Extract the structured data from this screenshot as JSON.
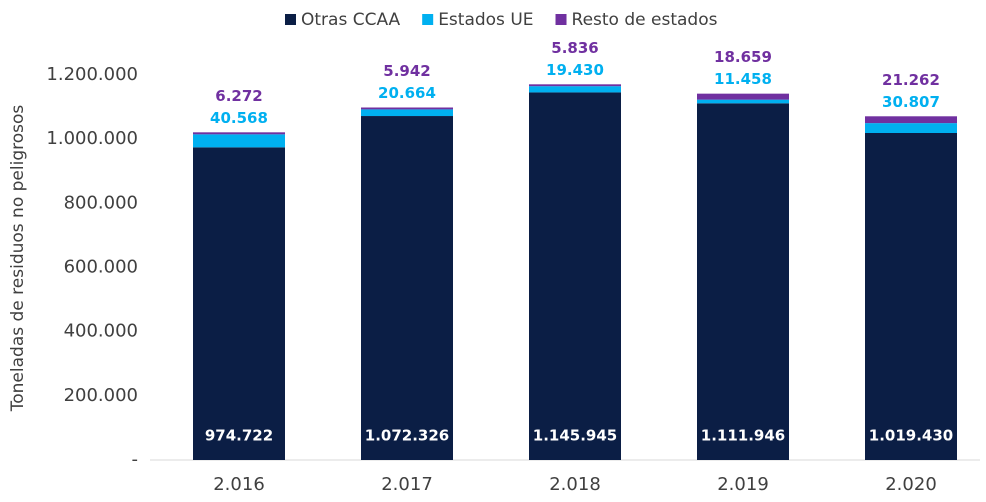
{
  "chart_data": {
    "type": "stacked_bar",
    "y_label": "Toneladas de residuos no peligrosos",
    "categories": [
      "2.016",
      "2.017",
      "2.018",
      "2.019",
      "2.020"
    ],
    "series": [
      {
        "name": "Otras CCAA",
        "color": "#0b1e45",
        "values": [
          974722,
          1072326,
          1145945,
          1111946,
          1019430
        ],
        "value_labels": [
          "974.722",
          "1.072.326",
          "1.145.945",
          "1.111.946",
          "1.019.430"
        ]
      },
      {
        "name": "Estados UE",
        "color": "#00b0f0",
        "values": [
          40568,
          20664,
          19430,
          11458,
          30807
        ],
        "value_labels": [
          "40.568",
          "20.664",
          "19.430",
          "11.458",
          "30.807"
        ]
      },
      {
        "name": "Resto de estados",
        "color": "#7030a0",
        "values": [
          6272,
          5942,
          5836,
          18659,
          21262
        ],
        "value_labels": [
          "6.272",
          "5.942",
          "5.836",
          "18.659",
          "21.262"
        ]
      }
    ],
    "ylim": [
      0,
      1300000
    ],
    "yticks": [
      {
        "value": 0,
        "label": "-"
      },
      {
        "value": 200000,
        "label": "200.000"
      },
      {
        "value": 400000,
        "label": "400.000"
      },
      {
        "value": 600000,
        "label": "600.000"
      },
      {
        "value": 800000,
        "label": "800.000"
      },
      {
        "value": 1000000,
        "label": "1.000.000"
      },
      {
        "value": 1200000,
        "label": "1.200.000"
      }
    ],
    "legend": "top"
  }
}
